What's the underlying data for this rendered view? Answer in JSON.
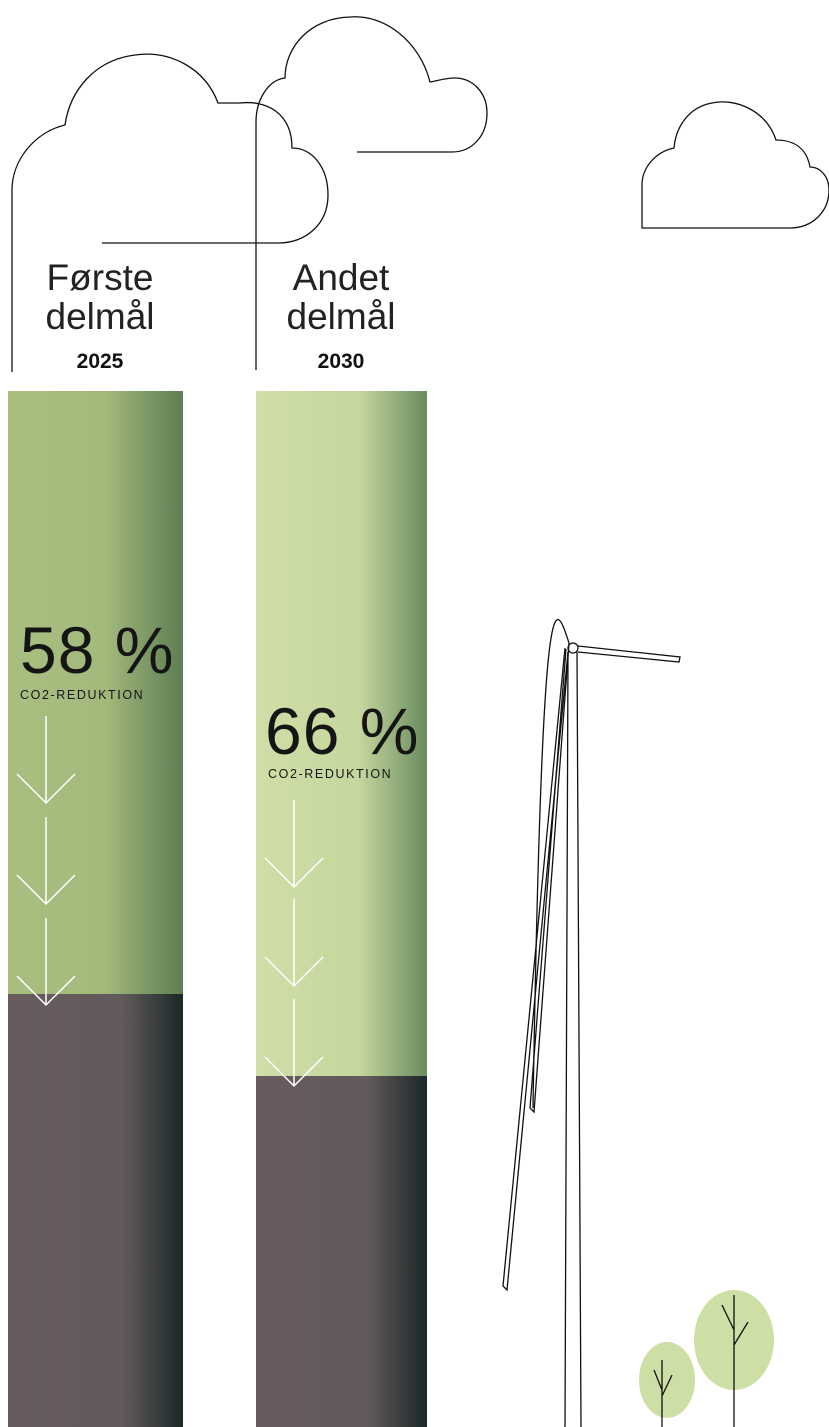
{
  "goals": [
    {
      "title_line1": "Første",
      "title_line2": "delmål",
      "year": "2025"
    },
    {
      "title_line1": "Andet",
      "title_line2": "delmål",
      "year": "2030"
    }
  ],
  "chart_data": {
    "type": "bar",
    "categories": [
      "2025",
      "2030"
    ],
    "series": [
      {
        "values": [
          58,
          66
        ]
      }
    ],
    "data_labels": [
      "58 %",
      "66 %"
    ],
    "value_caption": "CO2-REDUKTION",
    "ylim": [
      0,
      100
    ],
    "grid": false,
    "colors": {
      "reduction_2025": "#aec285",
      "reduction_2030": "#cfdea7",
      "remaining": "#655a5c",
      "edge_dark": "#1f2a2a"
    }
  },
  "illustrations": [
    "cloud-icon",
    "cloud-icon",
    "cloud-icon",
    "wind-turbine-icon",
    "tree-icon",
    "tree-icon"
  ]
}
